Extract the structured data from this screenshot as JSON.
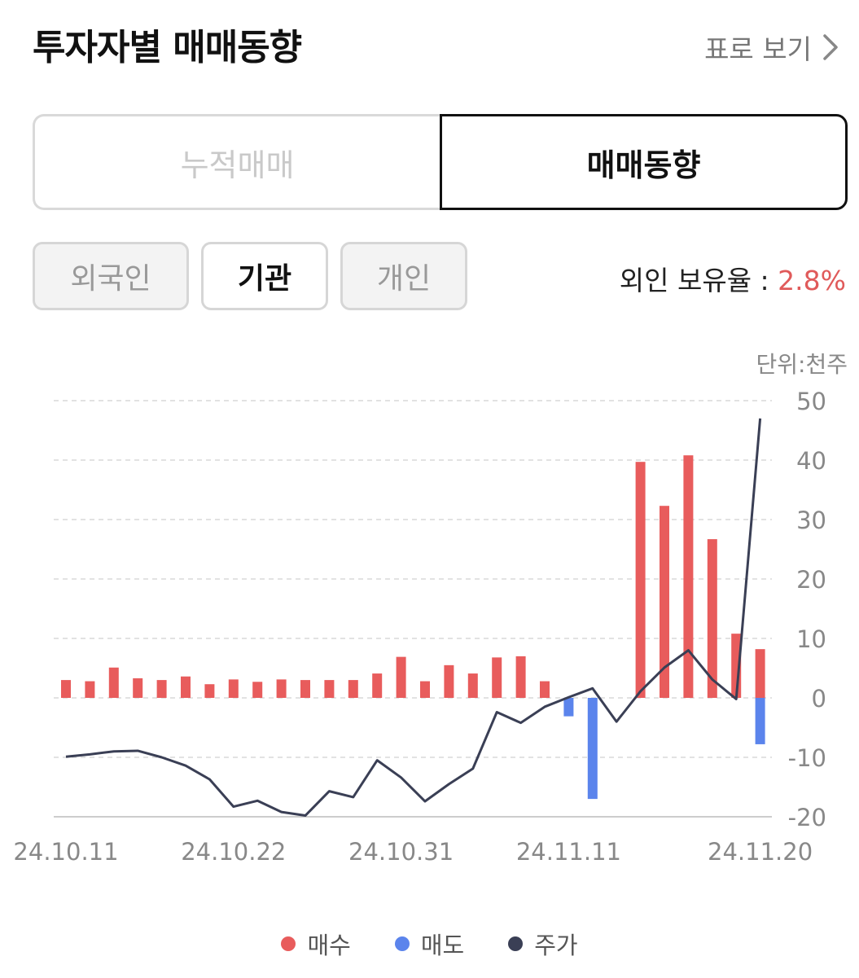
{
  "header": {
    "title": "투자자별 매매동향",
    "table_link": "표로 보기"
  },
  "segments": [
    {
      "label": "누적매매",
      "selected": false
    },
    {
      "label": "매매동향",
      "selected": true
    }
  ],
  "investors": [
    {
      "label": "외국인",
      "selected": false
    },
    {
      "label": "기관",
      "selected": true
    },
    {
      "label": "개인",
      "selected": false
    }
  ],
  "foreign_ratio": {
    "label": "외인 보유율 : ",
    "value": "2.8%"
  },
  "unit_label": "단위:천주",
  "colors": {
    "buy": "#e85c5c",
    "sell": "#5b84ec",
    "price": "#3a3f55",
    "accent": "#e05a5a"
  },
  "legend": [
    {
      "label": "매수",
      "color": "#e85c5c"
    },
    {
      "label": "매도",
      "color": "#5b84ec"
    },
    {
      "label": "주가",
      "color": "#3a3f55"
    }
  ],
  "chart_data": {
    "type": "bar",
    "ylim": [
      -20,
      50
    ],
    "yticks": [
      50,
      40,
      30,
      20,
      10,
      0,
      -10,
      -20
    ],
    "x_tick_labels": [
      "24.10.11",
      "24.10.22",
      "24.10.31",
      "24.11.11",
      "24.11.20"
    ],
    "x_tick_indices": [
      0,
      7,
      14,
      21,
      29
    ],
    "grid": true,
    "legend_position": "bottom",
    "series": [
      {
        "name": "매수",
        "values": [
          3,
          2.8,
          5.1,
          3.3,
          3,
          3.6,
          2.3,
          3.1,
          2.7,
          3.1,
          3,
          3,
          3,
          4.1,
          6.9,
          2.8,
          5.5,
          4.1,
          6.8,
          7,
          2.8,
          null,
          null,
          null,
          39.7,
          32.3,
          40.8,
          26.7,
          10.8,
          8.2
        ]
      },
      {
        "name": "매도",
        "values": [
          null,
          null,
          null,
          null,
          null,
          null,
          null,
          null,
          null,
          null,
          null,
          null,
          null,
          null,
          null,
          null,
          null,
          null,
          null,
          null,
          null,
          -3.1,
          -17,
          null,
          null,
          null,
          null,
          null,
          null,
          -7.8
        ]
      },
      {
        "name": "주가",
        "values": [
          -9.9,
          -9.5,
          -9,
          -8.9,
          -10,
          -11.4,
          -13.7,
          -18.3,
          -17.3,
          -19.2,
          -19.8,
          -15.7,
          -16.7,
          -10.5,
          -13.4,
          -17.4,
          -14.5,
          -11.9,
          -2.4,
          -4.2,
          -1.5,
          0.1,
          1.6,
          -4,
          1.1,
          5.1,
          8,
          3.1,
          -0.2,
          47
        ]
      }
    ]
  }
}
